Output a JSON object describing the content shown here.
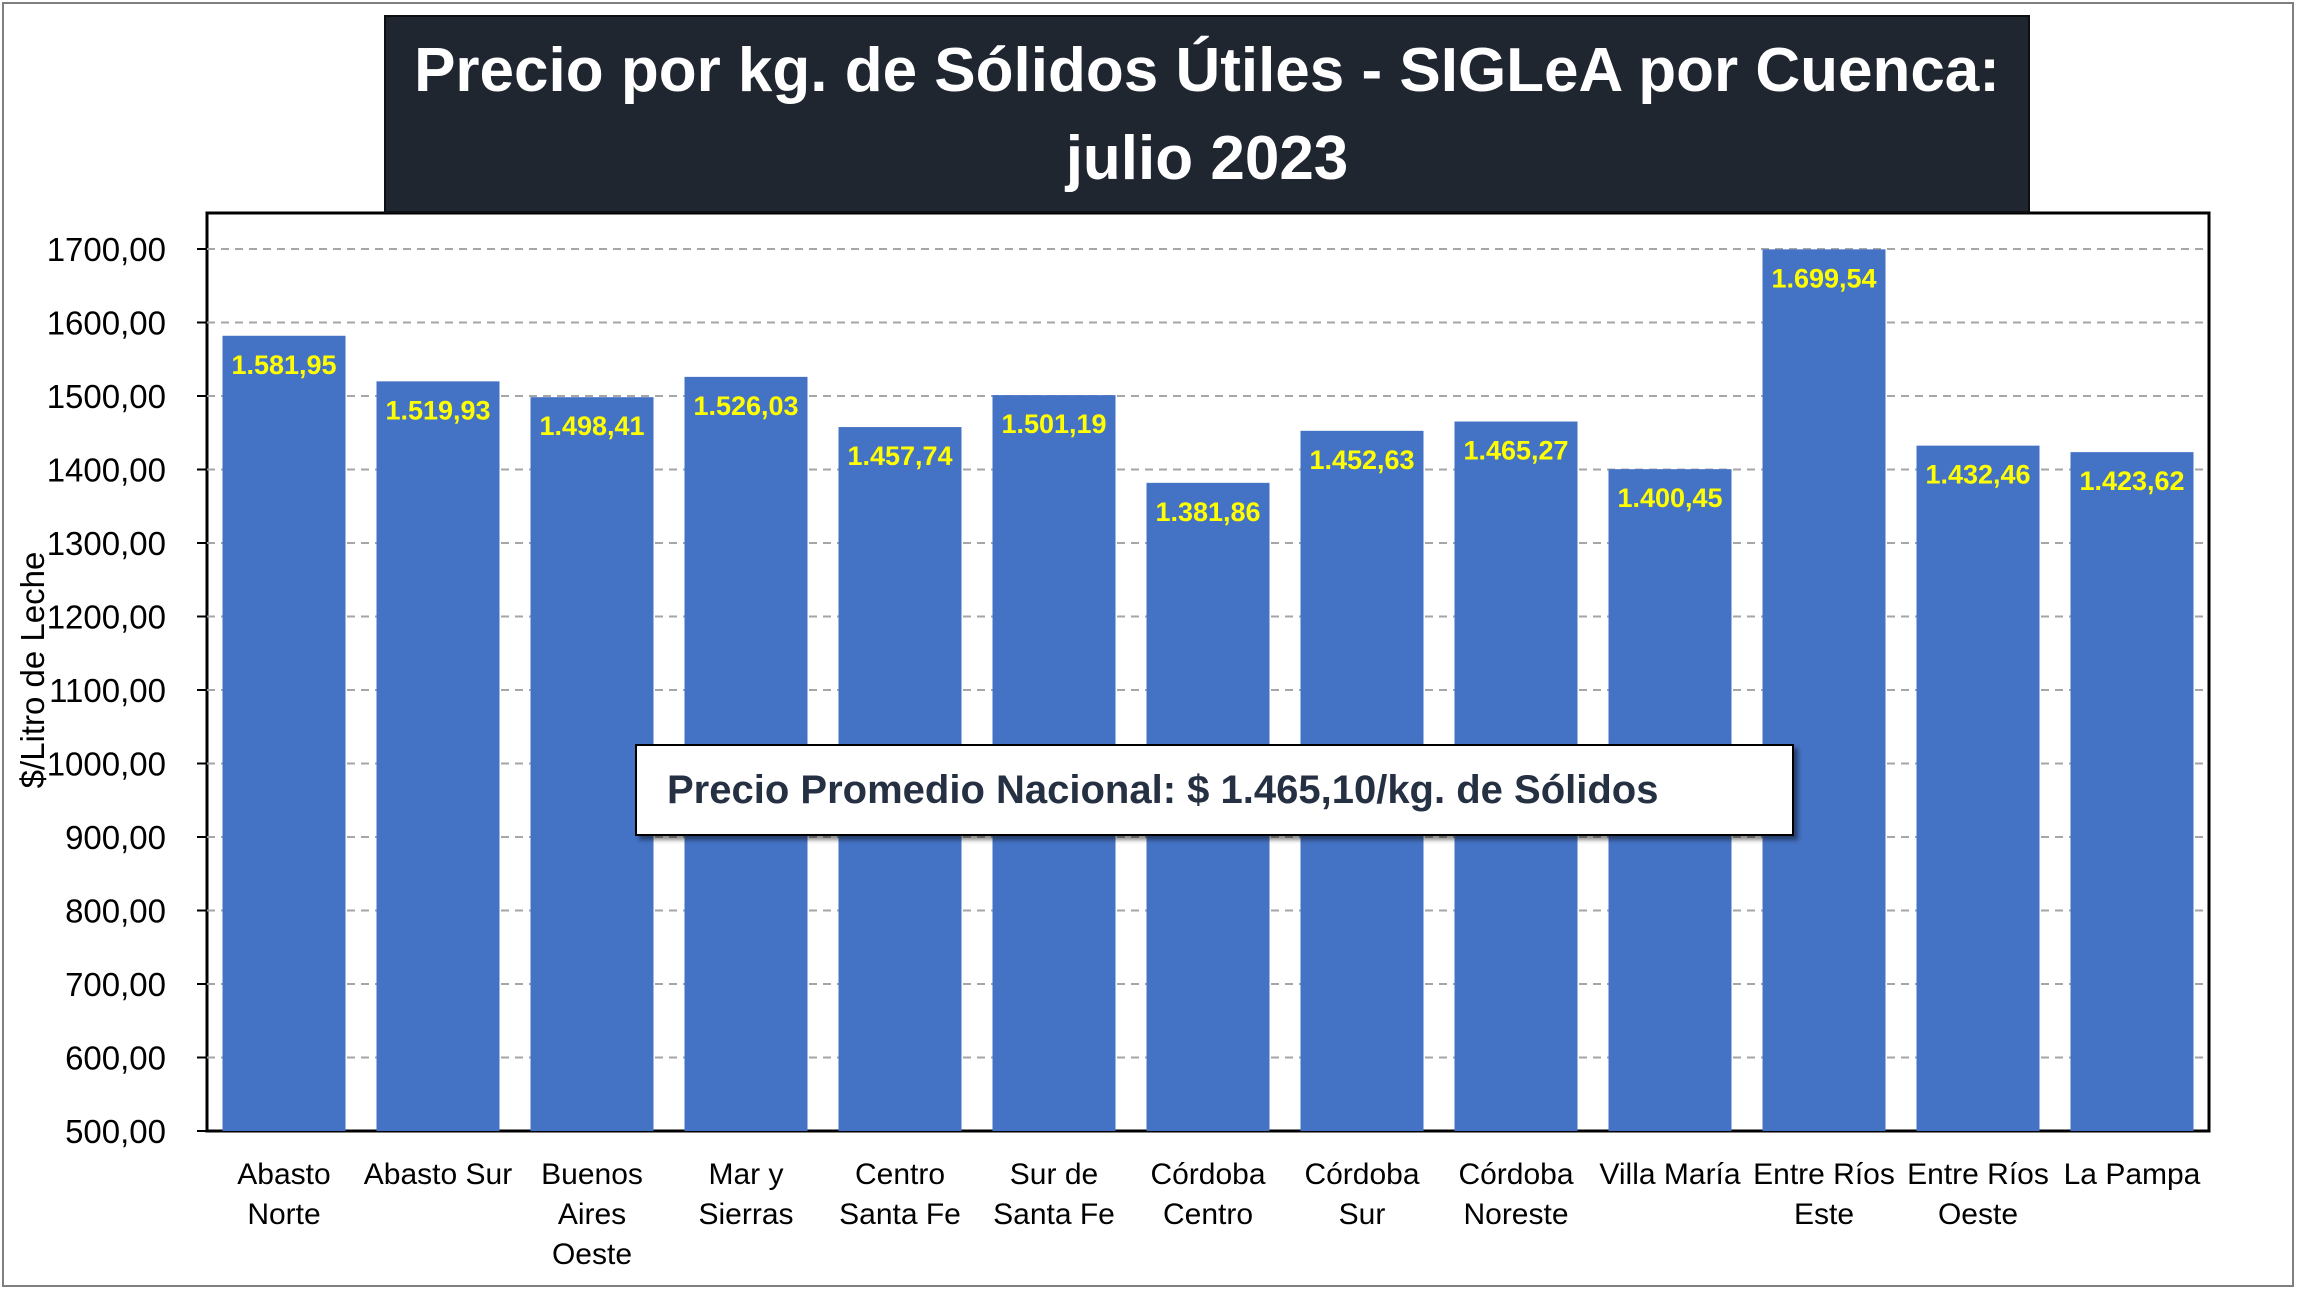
{
  "chart_data": {
    "type": "bar",
    "title": "Precio por kg. de Sólidos Útiles - SIGLeA por Cuenca:",
    "subtitle": "julio 2023",
    "ylabel": "$/Litro de Leche",
    "xlabel": "",
    "ylim": [
      500,
      1750
    ],
    "yticks": [
      "500,00",
      "600,00",
      "700,00",
      "800,00",
      "900,00",
      "1000,00",
      "1100,00",
      "1200,00",
      "1300,00",
      "1400,00",
      "1500,00",
      "1600,00",
      "1700,00"
    ],
    "ytick_values": [
      500,
      600,
      700,
      800,
      900,
      1000,
      1100,
      1200,
      1300,
      1400,
      1500,
      1600,
      1700
    ],
    "grid": true,
    "categories": [
      [
        "Abasto",
        "Norte"
      ],
      [
        "Abasto Sur"
      ],
      [
        "Buenos",
        "Aires",
        "Oeste"
      ],
      [
        "Mar y",
        "Sierras"
      ],
      [
        "Centro",
        "Santa Fe"
      ],
      [
        "Sur de",
        "Santa Fe"
      ],
      [
        "Córdoba",
        "Centro"
      ],
      [
        "Córdoba",
        "Sur"
      ],
      [
        "Córdoba",
        "Noreste"
      ],
      [
        "Villa María"
      ],
      [
        "Entre Ríos",
        "Este"
      ],
      [
        "Entre Ríos",
        "Oeste"
      ],
      [
        "La Pampa"
      ]
    ],
    "values": [
      1581.95,
      1519.93,
      1498.41,
      1526.03,
      1457.74,
      1501.19,
      1381.86,
      1452.63,
      1465.27,
      1400.45,
      1699.54,
      1432.46,
      1423.62
    ],
    "data_labels": [
      "1.581,95",
      "1.519,93",
      "1.498,41",
      "1.526,03",
      "1.457,74",
      "1.501,19",
      "1.381,86",
      "1.452,63",
      "1.465,27",
      "1.400,45",
      "1.699,54",
      "1.432,46",
      "1.423,62"
    ],
    "annotation": "Precio Promedio Nacional: $ 1.465,10/kg. de Sólidos",
    "colors": {
      "bar": "#4472c4",
      "data_label": "#ffff00",
      "title_bg": "#1f2630",
      "title_text": "#ffffff",
      "grid": "#a6a6a6"
    }
  }
}
